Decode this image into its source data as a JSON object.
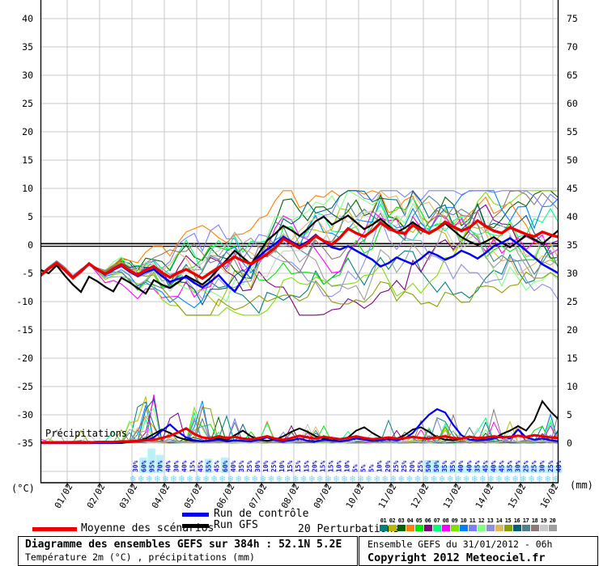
{
  "chart_data": {
    "type": "line",
    "title": "Diagramme des ensembles GEFS sur 384h : 52.1N 5.2E",
    "subtitle": "Température 2m (°C) , précipitations (mm)",
    "left_axis_label": "(°C)",
    "right_axis_label": "(mm)",
    "left_ticks": [
      40,
      35,
      30,
      25,
      20,
      15,
      10,
      5,
      0,
      -5,
      -10,
      -15,
      -20,
      -25,
      -30,
      -35
    ],
    "right_ticks": [
      75,
      70,
      65,
      60,
      55,
      50,
      45,
      40,
      35,
      30,
      25,
      20,
      15,
      10,
      5,
      0
    ],
    "dates": [
      "01/02",
      "02/02",
      "03/02",
      "04/02",
      "05/02",
      "06/02",
      "07/02",
      "08/02",
      "09/02",
      "10/02",
      "11/02",
      "12/02",
      "13/02",
      "14/02",
      "15/02",
      "16/02"
    ],
    "precip_inner_label": "Précipitations",
    "snowflake_icon": "❄",
    "snow_prob_percent": [
      30,
      60,
      95,
      70,
      40,
      30,
      40,
      15,
      45,
      55,
      45,
      60,
      40,
      35,
      25,
      30,
      10,
      25,
      10,
      15,
      15,
      15,
      20,
      15,
      15,
      10,
      10,
      5,
      5,
      5,
      10,
      20,
      25,
      25,
      20,
      25,
      50,
      50,
      35,
      35,
      40,
      40,
      35,
      45,
      40,
      45,
      35,
      30,
      25,
      25,
      30,
      25,
      40
    ],
    "colors": {
      "grid": "#c9c9c9",
      "axis": "#000000",
      "mean": "#ee0000",
      "control": "#0000ee",
      "gfs": "#000000",
      "percent_text": "#2121cc",
      "prob_bar": "#b9f0fa",
      "snowflake": "#7cd4f4"
    },
    "temperature": {
      "mean": [
        -5.4,
        -4.2,
        -3.2,
        -4.4,
        -5.8,
        -4.6,
        -3.3,
        -4.3,
        -5.1,
        -4.2,
        -3.5,
        -4.5,
        -5.3,
        -4.4,
        -3.8,
        -4.9,
        -5.7,
        -4.9,
        -4.3,
        -5.1,
        -5.9,
        -4.9,
        -4.0,
        -3.0,
        -2.1,
        -2.8,
        -3.3,
        -2.5,
        -1.6,
        -0.5,
        1.1,
        0.3,
        -0.5,
        0.3,
        1.6,
        0.7,
        0.1,
        1.3,
        2.9,
        2.1,
        1.5,
        2.5,
        3.9,
        3.0,
        2.3,
        2.0,
        3.5,
        2.7,
        2.1,
        2.9,
        4.1,
        3.2,
        2.5,
        3.1,
        4.3,
        3.3,
        2.5,
        2.1,
        3.1,
        2.5,
        1.9,
        1.5,
        2.3,
        1.8,
        1.4
      ],
      "control": [
        -5.4,
        -4.2,
        -3.2,
        -4.4,
        -5.8,
        -4.7,
        -3.4,
        -4.4,
        -5.2,
        -4.4,
        -3.7,
        -4.7,
        -5.5,
        -4.8,
        -4.3,
        -5.5,
        -6.5,
        -6.0,
        -5.7,
        -6.7,
        -7.5,
        -6.5,
        -5.3,
        -6.9,
        -8.2,
        -6.0,
        -3.5,
        -2.0,
        -0.8,
        0.2,
        1.4,
        0.6,
        -0.2,
        0.6,
        1.8,
        0.6,
        -0.4,
        -0.8,
        -0.2,
        -1.0,
        -1.8,
        -2.6,
        -3.8,
        -3.2,
        -2.2,
        -2.8,
        -3.4,
        -2.4,
        -1.2,
        -1.8,
        -2.6,
        -2.0,
        -1.0,
        -1.6,
        -2.4,
        -1.4,
        -0.2,
        0.4,
        1.2,
        0.2,
        -1.0,
        -2.2,
        -3.4,
        -4.2,
        -5.0
      ],
      "gfs": [
        -4.4,
        -5.0,
        -3.6,
        -5.4,
        -7.0,
        -8.3,
        -5.6,
        -6.4,
        -7.4,
        -8.2,
        -5.8,
        -6.6,
        -7.6,
        -8.6,
        -6.2,
        -7.0,
        -7.6,
        -6.6,
        -5.4,
        -6.2,
        -7.0,
        -5.8,
        -4.2,
        -2.6,
        -1.0,
        -2.2,
        -3.4,
        -1.4,
        0.8,
        2.0,
        3.4,
        2.6,
        1.6,
        2.8,
        4.2,
        5.0,
        3.6,
        4.4,
        5.2,
        4.0,
        2.8,
        3.6,
        4.6,
        3.4,
        2.2,
        3.0,
        4.0,
        3.0,
        2.0,
        2.8,
        3.8,
        2.6,
        1.4,
        0.6,
        0.0,
        0.6,
        1.4,
        0.4,
        -0.4,
        0.6,
        1.8,
        1.0,
        0.2,
        1.4,
        2.6
      ]
    },
    "precipitation": {
      "mean": [
        0.1,
        0.1,
        0.1,
        0.1,
        0.1,
        0.1,
        0.1,
        0.2,
        0.2,
        0.2,
        0.3,
        0.3,
        0.4,
        0.5,
        0.6,
        0.9,
        1.3,
        1.9,
        2.6,
        1.6,
        1.0,
        0.8,
        1.2,
        0.9,
        1.1,
        0.8,
        0.7,
        0.9,
        1.2,
        0.8,
        0.6,
        0.9,
        1.3,
        1.0,
        0.8,
        1.1,
        0.9,
        0.7,
        0.9,
        1.2,
        0.9,
        0.7,
        0.8,
        1.0,
        0.8,
        0.9,
        1.1,
        0.9,
        0.8,
        1.0,
        1.2,
        0.9,
        0.8,
        1.1,
        0.9,
        1.0,
        1.2,
        1.0,
        1.1,
        1.3,
        1.1,
        1.4,
        1.2,
        1.0,
        0.9
      ],
      "control": [
        0,
        0,
        0,
        0,
        0,
        0,
        0,
        0,
        0,
        0,
        0.1,
        0.2,
        0.3,
        0.5,
        1.0,
        2.2,
        3.3,
        2.0,
        1.0,
        0.5,
        0.3,
        0.4,
        0.6,
        0.3,
        0.5,
        0.4,
        0.3,
        0.6,
        1.0,
        0.5,
        0.3,
        0.5,
        0.8,
        0.4,
        0.3,
        0.6,
        0.4,
        0.3,
        0.5,
        0.8,
        0.6,
        0.4,
        0.5,
        0.7,
        0.5,
        0.8,
        1.8,
        3.5,
        5.0,
        6.0,
        5.4,
        3.2,
        1.4,
        0.6,
        0.5,
        0.6,
        0.8,
        1.2,
        0.8,
        2.4,
        1.0,
        0.6,
        0.8,
        0.5,
        0.3
      ],
      "gfs": [
        0,
        0,
        0,
        0,
        0,
        0,
        0,
        0,
        0,
        0,
        0,
        0.2,
        0.4,
        0.8,
        1.6,
        2.4,
        1.8,
        1.0,
        0.6,
        0.4,
        0.3,
        0.5,
        0.8,
        0.5,
        1.4,
        2.2,
        1.2,
        0.6,
        0.4,
        0.6,
        1.2,
        2.0,
        2.6,
        2.0,
        1.2,
        0.8,
        0.5,
        0.7,
        1.0,
        2.2,
        2.8,
        1.8,
        1.0,
        0.6,
        0.8,
        1.4,
        2.4,
        2.8,
        2.0,
        1.0,
        0.6,
        0.5,
        0.8,
        1.2,
        0.9,
        0.6,
        0.8,
        1.6,
        2.2,
        3.0,
        2.2,
        4.0,
        7.4,
        5.6,
        4.2
      ]
    },
    "perturbations": {
      "count": 20,
      "labels": [
        "01",
        "02",
        "03",
        "04",
        "05",
        "06",
        "07",
        "08",
        "09",
        "10",
        "11",
        "12",
        "13",
        "14",
        "15",
        "16",
        "17",
        "18",
        "19",
        "20"
      ],
      "colors": [
        "#008080",
        "#b9b900",
        "#006400",
        "#ff8000",
        "#00e800",
        "#800080",
        "#00ff7f",
        "#ff00ff",
        "#80e000",
        "#0080ff",
        "#7d7dff",
        "#7fff7f",
        "#8f8fe0",
        "#e0b85c",
        "#8aa000",
        "#006080",
        "#50808e",
        "#8e7878",
        "#c9c9c9",
        "#9f9f9f"
      ],
      "temp_seed": 41,
      "precip_seed": 913
    }
  },
  "legend": {
    "mean_label": "Moyenne des scénarios",
    "control_label": "Run de contrôle",
    "gfs_label": "Run GFS",
    "perturbations_label": "20 Perturbations"
  },
  "footer": {
    "left_title": "Diagramme des ensembles GEFS sur 384h : 52.1N 5.2E",
    "left_subtitle": "Température 2m (°C) , précipitations (mm)",
    "right_line1": "Ensemble GEFS du 31/01/2012 - 06h",
    "right_line2": "Copyright 2012 Meteociel.fr"
  }
}
